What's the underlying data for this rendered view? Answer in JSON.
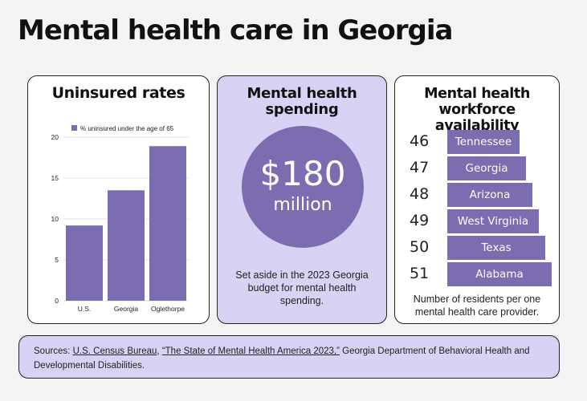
{
  "title": "Mental health care in Georgia",
  "uninsured": {
    "title": "Uninsured rates"
  },
  "spending": {
    "title_line1": "Mental health",
    "title_line2": "spending",
    "amount": "$180",
    "unit": "million",
    "description": "Set aside in the 2023 Georgia budget for mental health spending."
  },
  "workforce": {
    "title_line1": "Mental health",
    "title_line2": "workforce availability",
    "note": "Number of residents per one mental health care provider."
  },
  "sources": {
    "prefix": "Sources: ",
    "link1": "U.S. Census Bureau",
    "sep1": ", ",
    "link2": "“The State of Mental Health America 2023,”",
    "suffix": " Georgia Department of Behavioral Health and Developmental Disabilities."
  },
  "colors": {
    "bar": "#7b6db0",
    "card_accent": "#d8d2f4"
  },
  "chart_data": [
    {
      "type": "bar",
      "title": "Uninsured rates",
      "categories": [
        "U.S.",
        "Georgia",
        "Oglethorpe"
      ],
      "series": [
        {
          "name": "% uninsured under the age of 65",
          "values": [
            9.2,
            13.5,
            18.9
          ]
        }
      ],
      "ylim": [
        0,
        20
      ],
      "yticks": [
        0,
        5,
        10,
        15,
        20
      ],
      "grid": true,
      "legend": "top"
    },
    {
      "type": "bar",
      "title": "Mental health workforce availability",
      "orientation": "horizontal",
      "categories": [
        "Tennessee",
        "Georgia",
        "Arizona",
        "West Virginia",
        "Texas",
        "Alabama"
      ],
      "values": [
        46,
        47,
        48,
        49,
        50,
        51
      ]
    }
  ]
}
